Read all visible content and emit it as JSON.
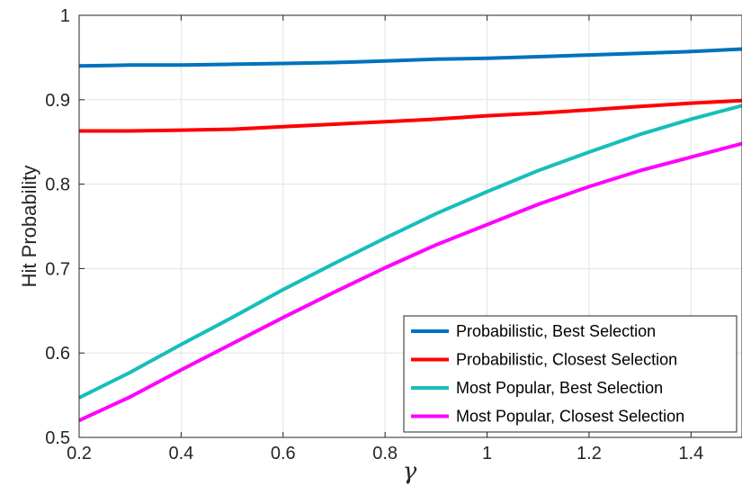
{
  "chart_data": {
    "type": "line",
    "title": "",
    "xlabel": "γ",
    "ylabel": "Hit Probability",
    "xlim": [
      0.2,
      1.5
    ],
    "ylim": [
      0.5,
      1.0
    ],
    "xticks": [
      0.2,
      0.4,
      0.6,
      0.8,
      1.0,
      1.2,
      1.4
    ],
    "xtick_labels": [
      "0.2",
      "0.4",
      "0.6",
      "0.8",
      "1",
      "1.2",
      "1.4"
    ],
    "yticks": [
      0.5,
      0.6,
      0.7,
      0.8,
      0.9,
      1.0
    ],
    "ytick_labels": [
      "0.5",
      "0.6",
      "0.7",
      "0.8",
      "0.9",
      "1"
    ],
    "grid": true,
    "legend_position": "bottom-right",
    "x": [
      0.2,
      0.3,
      0.4,
      0.5,
      0.6,
      0.7,
      0.8,
      0.9,
      1.0,
      1.1,
      1.2,
      1.3,
      1.4,
      1.5
    ],
    "series": [
      {
        "name": "Probabilistic, Best Selection",
        "color": "#0072BD",
        "values": [
          0.94,
          0.941,
          0.941,
          0.942,
          0.943,
          0.944,
          0.946,
          0.948,
          0.949,
          0.951,
          0.953,
          0.955,
          0.957,
          0.96
        ]
      },
      {
        "name": "Probabilistic, Closest Selection",
        "color": "#FF0000",
        "values": [
          0.863,
          0.863,
          0.864,
          0.865,
          0.868,
          0.871,
          0.874,
          0.877,
          0.881,
          0.884,
          0.888,
          0.892,
          0.896,
          0.899
        ]
      },
      {
        "name": "Most Popular, Best Selection",
        "color": "#17BEBB",
        "values": [
          0.547,
          0.577,
          0.61,
          0.642,
          0.675,
          0.706,
          0.736,
          0.765,
          0.791,
          0.816,
          0.838,
          0.859,
          0.877,
          0.893
        ]
      },
      {
        "name": "Most Popular, Closest Selection",
        "color": "#FF00FF",
        "values": [
          0.52,
          0.548,
          0.58,
          0.611,
          0.642,
          0.672,
          0.701,
          0.728,
          0.752,
          0.776,
          0.797,
          0.816,
          0.832,
          0.848
        ]
      }
    ]
  }
}
